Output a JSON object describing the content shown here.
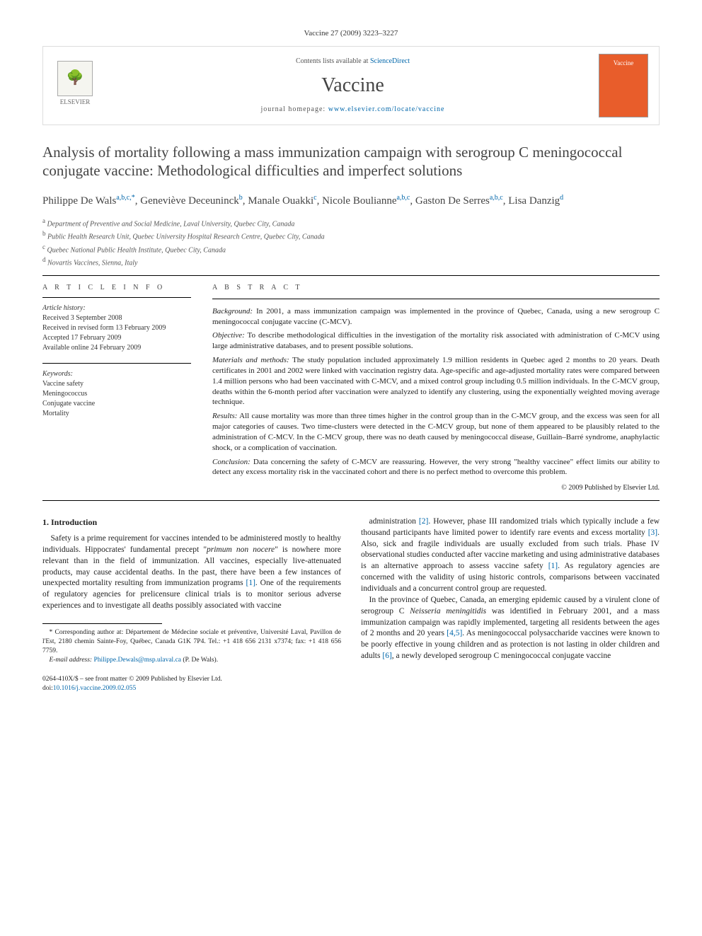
{
  "header": {
    "citation": "Vaccine 27 (2009) 3223–3227"
  },
  "journalbox": {
    "contents_prefix": "Contents lists available at ",
    "contents_link": "ScienceDirect",
    "name": "Vaccine",
    "homepage_prefix": "journal homepage: ",
    "homepage_url": "www.elsevier.com/locate/vaccine",
    "publisher": "ELSEVIER",
    "cover_label": "Vaccine"
  },
  "title": "Analysis of mortality following a mass immunization campaign with serogroup C meningococcal conjugate vaccine: Methodological difficulties and imperfect solutions",
  "authors_html": "Philippe De Wals<sup>a,b,c,*</sup>, Geneviève Deceuninck<sup>b</sup>, Manale Ouakki<sup>c</sup>, Nicole Boulianne<sup>a,b,c</sup>, Gaston De Serres<sup>a,b,c</sup>, Lisa Danzig<sup>d</sup>",
  "affiliations": [
    "Department of Preventive and Social Medicine, Laval University, Quebec City, Canada",
    "Public Health Research Unit, Quebec University Hospital Research Centre, Quebec City, Canada",
    "Quebec National Public Health Institute, Quebec City, Canada",
    "Novartis Vaccines, Sienna, Italy"
  ],
  "aff_markers": [
    "a",
    "b",
    "c",
    "d"
  ],
  "article_info": {
    "heading": "A R T I C L E   I N F O",
    "history_label": "Article history:",
    "history": [
      "Received 3 September 2008",
      "Received in revised form 13 February 2009",
      "Accepted 17 February 2009",
      "Available online 24 February 2009"
    ],
    "keywords_label": "Keywords:",
    "keywords": [
      "Vaccine safety",
      "Meningococcus",
      "Conjugate vaccine",
      "Mortality"
    ]
  },
  "abstract": {
    "heading": "A B S T R A C T",
    "background_label": "Background:",
    "background": " In 2001, a mass immunization campaign was implemented in the province of Quebec, Canada, using a new serogroup C meningococcal conjugate vaccine (C-MCV).",
    "objective_label": "Objective:",
    "objective": " To describe methodological difficulties in the investigation of the mortality risk associated with administration of C-MCV using large administrative databases, and to present possible solutions.",
    "methods_label": "Materials and methods:",
    "methods": " The study population included approximately 1.9 million residents in Quebec aged 2 months to 20 years. Death certificates in 2001 and 2002 were linked with vaccination registry data. Age-specific and age-adjusted mortality rates were compared between 1.4 million persons who had been vaccinated with C-MCV, and a mixed control group including 0.5 million individuals. In the C-MCV group, deaths within the 6-month period after vaccination were analyzed to identify any clustering, using the exponentially weighted moving average technique.",
    "results_label": "Results:",
    "results": " All cause mortality was more than three times higher in the control group than in the C-MCV group, and the excess was seen for all major categories of causes. Two time-clusters were detected in the C-MCV group, but none of them appeared to be plausibly related to the administration of C-MCV. In the C-MCV group, there was no death caused by meningococcal disease, Guillain–Barré syndrome, anaphylactic shock, or a complication of vaccination.",
    "conclusion_label": "Conclusion:",
    "conclusion": " Data concerning the safety of C-MCV are reassuring. However, the very strong \"healthy vaccinee\" effect limits our ability to detect any excess mortality risk in the vaccinated cohort and there is no perfect method to overcome this problem.",
    "copyright": "© 2009 Published by Elsevier Ltd."
  },
  "body": {
    "section1_heading": "1. Introduction",
    "col_left": "Safety is a prime requirement for vaccines intended to be administered mostly to healthy individuals. Hippocrates' fundamental precept \"primum non nocere\" is nowhere more relevant than in the field of immunization. All vaccines, especially live-attenuated products, may cause accidental deaths. In the past, there have been a few instances of unexpected mortality resulting from immunization programs [1]. One of the requirements of regulatory agencies for prelicensure clinical trials is to monitor serious adverse experiences and to investigate all deaths possibly associated with vaccine",
    "col_right_p1": "administration [2]. However, phase III randomized trials which typically include a few thousand participants have limited power to identify rare events and excess mortality [3]. Also, sick and fragile individuals are usually excluded from such trials. Phase IV observational studies conducted after vaccine marketing and using administrative databases is an alternative approach to assess vaccine safety [1]. As regulatory agencies are concerned with the validity of using historic controls, comparisons between vaccinated individuals and a concurrent control group are requested.",
    "col_right_p2": "In the province of Quebec, Canada, an emerging epidemic caused by a virulent clone of serogroup C Neisseria meningitidis was identified in February 2001, and a mass immunization campaign was rapidly implemented, targeting all residents between the ages of 2 months and 20 years [4,5]. As meningococcal polysaccharide vaccines were known to be poorly effective in young children and as protection is not lasting in older children and adults [6], a newly developed serogroup C meningococcal conjugate vaccine"
  },
  "footnotes": {
    "corresponding": "* Corresponding author at: Département de Médecine sociale et préventive, Université Laval, Pavillon de l'Est, 2180 chemin Sainte-Foy, Québec, Canada G1K 7P4. Tel.: +1 418 656 2131 x7374; fax: +1 418 656 7759.",
    "email_label": "E-mail address: ",
    "email": "Philippe.Dewals@msp.ulaval.ca",
    "email_suffix": " (P. De Wals)."
  },
  "footer": {
    "line1": "0264-410X/$ – see front matter © 2009 Published by Elsevier Ltd.",
    "doi_prefix": "doi:",
    "doi": "10.1016/j.vaccine.2009.02.055"
  },
  "colors": {
    "link": "#0066aa",
    "cover_bg": "#e85d2b",
    "text": "#222222",
    "muted": "#555555",
    "rule": "#000000"
  }
}
